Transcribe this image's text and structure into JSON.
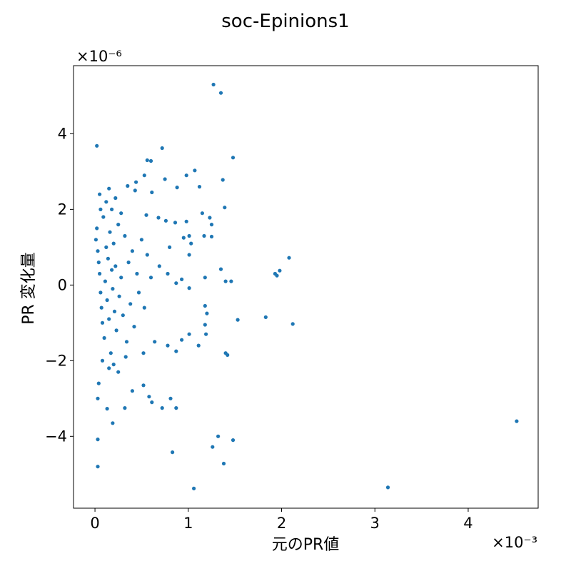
{
  "chart_data": {
    "type": "scatter",
    "title": "soc-Epinions1",
    "xlabel": "元のPR値",
    "ylabel": "PR 変化量",
    "x_multiplier": "×10⁻³",
    "y_multiplier": "×10⁻⁶",
    "xlim": [
      -0.00023,
      0.00475
    ],
    "ylim": [
      -5.9e-06,
      5.8e-06
    ],
    "xticks": [
      0,
      0.001,
      0.002,
      0.003,
      0.004
    ],
    "xtick_labels": [
      "0",
      "1",
      "2",
      "3",
      "4"
    ],
    "yticks": [
      -4e-06,
      -2e-06,
      0,
      2e-06,
      4e-06
    ],
    "ytick_labels": [
      "−4",
      "−2",
      "0",
      "2",
      "4"
    ],
    "grid": false,
    "marker_color": "#1f77b4",
    "series": [
      {
        "points": [
          [
            0.00127,
            5.3e-06
          ],
          [
            0.00135,
            5.08e-06
          ],
          [
            2e-05,
            3.68e-06
          ],
          [
            0.00072,
            3.62e-06
          ],
          [
            0.00148,
            3.37e-06
          ],
          [
            0.00056,
            3.3e-06
          ],
          [
            0.0006,
            3.28e-06
          ],
          [
            0.00107,
            3.03e-06
          ],
          [
            0.00098,
            2.9e-06
          ],
          [
            0.00137,
            2.78e-06
          ],
          [
            0.00075,
            2.8e-06
          ],
          [
            0.00053,
            2.9e-06
          ],
          [
            0.00044,
            2.72e-06
          ],
          [
            0.00035,
            2.62e-06
          ],
          [
            0.00112,
            2.6e-06
          ],
          [
            0.00088,
            2.58e-06
          ],
          [
            0.00061,
            2.45e-06
          ],
          [
            0.00043,
            2.5e-06
          ],
          [
            0.00015,
            2.55e-06
          ],
          [
            5e-05,
            2.4e-06
          ],
          [
            0.00139,
            2.05e-06
          ],
          [
            0.00115,
            1.9e-06
          ],
          [
            0.00123,
            1.78e-06
          ],
          [
            0.00125,
            1.6e-06
          ],
          [
            0.00098,
            1.68e-06
          ],
          [
            0.00086,
            1.65e-06
          ],
          [
            0.00076,
            1.7e-06
          ],
          [
            0.00068,
            1.78e-06
          ],
          [
            0.00055,
            1.85e-06
          ],
          [
            0.00117,
            1.3e-06
          ],
          [
            0.00125,
            1.28e-06
          ],
          [
            0.00101,
            1.3e-06
          ],
          [
            0.00095,
            1.25e-06
          ],
          [
            0.00103,
            1.1e-06
          ],
          [
            0.0008,
            1e-06
          ],
          [
            0.00101,
            8e-07
          ],
          [
            0.00135,
            4.2e-07
          ],
          [
            0.00208,
            7.2e-07
          ],
          [
            0.00198,
            3.8e-07
          ],
          [
            0.00193,
            3e-07
          ],
          [
            0.00195,
            2.5e-07
          ],
          [
            0.00118,
            2e-07
          ],
          [
            0.00146,
            1e-07
          ],
          [
            0.0014,
            1e-07
          ],
          [
            0.00093,
            1.5e-07
          ],
          [
            0.00101,
            -8e-08
          ],
          [
            0.00087,
            5e-08
          ],
          [
            0.00078,
            3e-07
          ],
          [
            0.00069,
            5e-07
          ],
          [
            0.0006,
            2e-07
          ],
          [
            0.00153,
            -9.2e-07
          ],
          [
            0.00183,
            -8.5e-07
          ],
          [
            0.00212,
            -1.03e-06
          ],
          [
            0.00118,
            -5.5e-07
          ],
          [
            0.0012,
            -7.5e-07
          ],
          [
            0.00118,
            -1.05e-06
          ],
          [
            0.00119,
            -1.3e-06
          ],
          [
            0.00111,
            -1.6e-06
          ],
          [
            0.00101,
            -1.3e-06
          ],
          [
            0.00093,
            -1.45e-06
          ],
          [
            0.00087,
            -1.75e-06
          ],
          [
            0.00078,
            -1.6e-06
          ],
          [
            0.00064,
            -1.5e-06
          ],
          [
            0.00052,
            -1.8e-06
          ],
          [
            0.0014,
            -1.8e-06
          ],
          [
            0.00142,
            -1.85e-06
          ],
          [
            0.00081,
            -3e-06
          ],
          [
            0.00087,
            -3.25e-06
          ],
          [
            0.00072,
            -3.25e-06
          ],
          [
            0.00061,
            -3.1e-06
          ],
          [
            0.00058,
            -2.95e-06
          ],
          [
            0.00052,
            -2.65e-06
          ],
          [
            0.0004,
            -2.8e-06
          ],
          [
            0.00032,
            -3.25e-06
          ],
          [
            0.00013,
            -3.27e-06
          ],
          [
            0.00019,
            -3.65e-06
          ],
          [
            4e-05,
            -2.6e-06
          ],
          [
            3e-05,
            -3e-06
          ],
          [
            3e-05,
            -4.08e-06
          ],
          [
            3e-05,
            -4.8e-06
          ],
          [
            0.00083,
            -4.42e-06
          ],
          [
            0.00126,
            -4.28e-06
          ],
          [
            0.00132,
            -4e-06
          ],
          [
            0.00148,
            -4.1e-06
          ],
          [
            0.00138,
            -4.72e-06
          ],
          [
            0.00106,
            -5.38e-06
          ],
          [
            0.00314,
            -5.35e-06
          ],
          [
            0.00452,
            -3.6e-06
          ],
          [
            1e-05,
            1.2e-06
          ],
          [
            2e-05,
            1.5e-06
          ],
          [
            3e-05,
            9e-07
          ],
          [
            4e-05,
            6e-07
          ],
          [
            5e-05,
            3e-07
          ],
          [
            6e-05,
            -2e-07
          ],
          [
            7e-05,
            -6e-07
          ],
          [
            8e-05,
            -1e-06
          ],
          [
            9e-05,
            1.8e-06
          ],
          [
            0.0001,
            -1.4e-06
          ],
          [
            0.00011,
            1e-07
          ],
          [
            0.00012,
            1e-06
          ],
          [
            0.00013,
            -4e-07
          ],
          [
            0.00014,
            7e-07
          ],
          [
            0.00015,
            -9e-07
          ],
          [
            0.00016,
            1.4e-06
          ],
          [
            0.00017,
            -1.8e-06
          ],
          [
            0.00018,
            4e-07
          ],
          [
            0.00019,
            -1e-07
          ],
          [
            0.0002,
            1.1e-06
          ],
          [
            0.00021,
            -7e-07
          ],
          [
            0.00022,
            5e-07
          ],
          [
            0.00023,
            -1.2e-06
          ],
          [
            0.00025,
            1.6e-06
          ],
          [
            0.00026,
            -3e-07
          ],
          [
            0.00028,
            2e-07
          ],
          [
            0.0003,
            -8e-07
          ],
          [
            0.00032,
            1.3e-06
          ],
          [
            0.00034,
            -1.5e-06
          ],
          [
            0.00036,
            6e-07
          ],
          [
            0.00038,
            -5e-07
          ],
          [
            0.0004,
            9e-07
          ],
          [
            0.00042,
            -1.1e-06
          ],
          [
            0.00045,
            3e-07
          ],
          [
            0.00047,
            -2e-07
          ],
          [
            0.0005,
            1.2e-06
          ],
          [
            0.00053,
            -6e-07
          ],
          [
            0.00056,
            8e-07
          ],
          [
            0.0002,
            -2.1e-06
          ],
          [
            0.00025,
            -2.3e-06
          ],
          [
            0.00012,
            2.2e-06
          ],
          [
            0.00018,
            2e-06
          ],
          [
            0.00028,
            1.9e-06
          ],
          [
            0.00033,
            -1.9e-06
          ],
          [
            8e-05,
            -2e-06
          ],
          [
            6e-05,
            2e-06
          ],
          [
            0.00015,
            -2.2e-06
          ],
          [
            0.00022,
            2.3e-06
          ]
        ]
      }
    ]
  }
}
